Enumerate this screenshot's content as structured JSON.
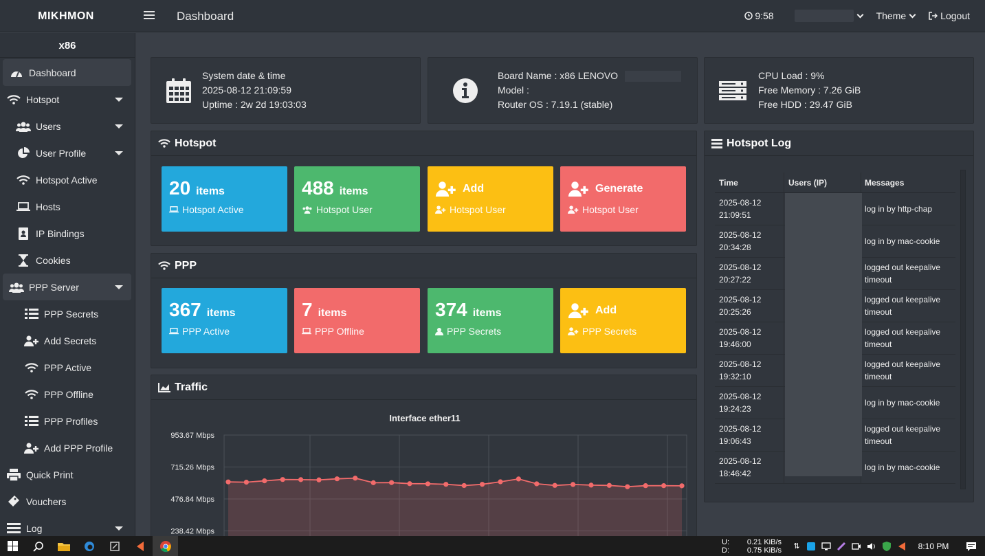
{
  "app": {
    "brand": "MIKHMON",
    "page_title": "Dashboard"
  },
  "topbar": {
    "clock": "9:58",
    "theme_label": "Theme",
    "logout_label": "Logout"
  },
  "sidebar": {
    "title": "x86",
    "items": [
      {
        "label": "Dashboard"
      },
      {
        "label": "Hotspot"
      },
      {
        "label": "Users"
      },
      {
        "label": "User Profile"
      },
      {
        "label": "Hotspot Active"
      },
      {
        "label": "Hosts"
      },
      {
        "label": "IP Bindings"
      },
      {
        "label": "Cookies"
      },
      {
        "label": "PPP Server"
      },
      {
        "label": "PPP Secrets"
      },
      {
        "label": "Add Secrets"
      },
      {
        "label": "PPP Active"
      },
      {
        "label": "PPP Offline"
      },
      {
        "label": "PPP Profiles"
      },
      {
        "label": "Add PPP Profile"
      },
      {
        "label": "Quick Print"
      },
      {
        "label": "Vouchers"
      },
      {
        "label": "Log"
      }
    ]
  },
  "system": {
    "date_label": "System date & time",
    "datetime": "2025-08-12 21:09:59",
    "uptime": "Uptime : 2w 2d 19:03:03",
    "board": "Board Name : x86 LENOVO",
    "model": "Model :",
    "routeros": "Router OS : 7.19.1 (stable)",
    "cpu": "CPU Load : 9%",
    "memory": "Free Memory : 7.26 GiB",
    "hdd": "Free HDD : 29.47 GiB"
  },
  "hotspot": {
    "title": "Hotspot",
    "tiles": [
      {
        "num": "20",
        "unit": "items",
        "sub": "Hotspot Active"
      },
      {
        "num": "488",
        "unit": "items",
        "sub": "Hotspot User"
      },
      {
        "head": "Add",
        "sub": "Hotspot User"
      },
      {
        "head": "Generate",
        "sub": "Hotspot User"
      }
    ]
  },
  "ppp": {
    "title": "PPP",
    "tiles": [
      {
        "num": "367",
        "unit": "items",
        "sub": "PPP Active"
      },
      {
        "num": "7",
        "unit": "items",
        "sub": "PPP Offline"
      },
      {
        "num": "374",
        "unit": "items",
        "sub": "PPP Secrets"
      },
      {
        "head": "Add",
        "sub": "PPP Secrets"
      }
    ]
  },
  "traffic": {
    "title": "Traffic"
  },
  "chart_data": {
    "type": "area",
    "title": "Interface ether11",
    "y_ticks": [
      "953.67 Mbps",
      "715.26 Mbps",
      "476.84 Mbps",
      "238.42 Mbps"
    ],
    "ylim": [
      0,
      953.67
    ],
    "unit": "Mbps",
    "values": [
      604,
      602,
      612,
      622,
      621,
      619,
      627,
      632,
      598,
      599,
      591,
      590,
      586,
      577,
      586,
      605,
      626,
      590,
      578,
      585,
      580,
      578,
      568,
      576,
      576,
      575
    ]
  },
  "log": {
    "title": "Hotspot Log",
    "headers": [
      "Time",
      "Users (IP)",
      "Messages"
    ],
    "rows": [
      {
        "date": "2025-08-12",
        "time": "21:09:51",
        "msg": "log in by http-chap"
      },
      {
        "date": "2025-08-12",
        "time": "20:34:28",
        "msg": "log in by mac-cookie"
      },
      {
        "date": "2025-08-12",
        "time": "20:27:22",
        "msg": "logged out keepalive timeout"
      },
      {
        "date": "2025-08-12",
        "time": "20:25:26",
        "msg": "logged out keepalive timeout"
      },
      {
        "date": "2025-08-12",
        "time": "19:46:00",
        "msg": "logged out keepalive timeout"
      },
      {
        "date": "2025-08-12",
        "time": "19:32:10",
        "msg": "logged out keepalive timeout"
      },
      {
        "date": "2025-08-12",
        "time": "19:24:23",
        "msg": "log in by mac-cookie"
      },
      {
        "date": "2025-08-12",
        "time": "19:06:43",
        "msg": "logged out keepalive timeout"
      },
      {
        "date": "2025-08-12",
        "time": "18:46:42",
        "msg": "log in by mac-cookie"
      }
    ]
  },
  "taskbar": {
    "net_up": "U:",
    "net_down": "D:",
    "up_rate": "0.21 KiB/s",
    "down_rate": "0.75 KiB/s",
    "time": "8:10 PM"
  },
  "colors": {
    "blue": "#23a8dc",
    "green": "#4db86e",
    "yellow": "#fcbf13",
    "red": "#f26b6b",
    "line": "#f26b6b"
  }
}
